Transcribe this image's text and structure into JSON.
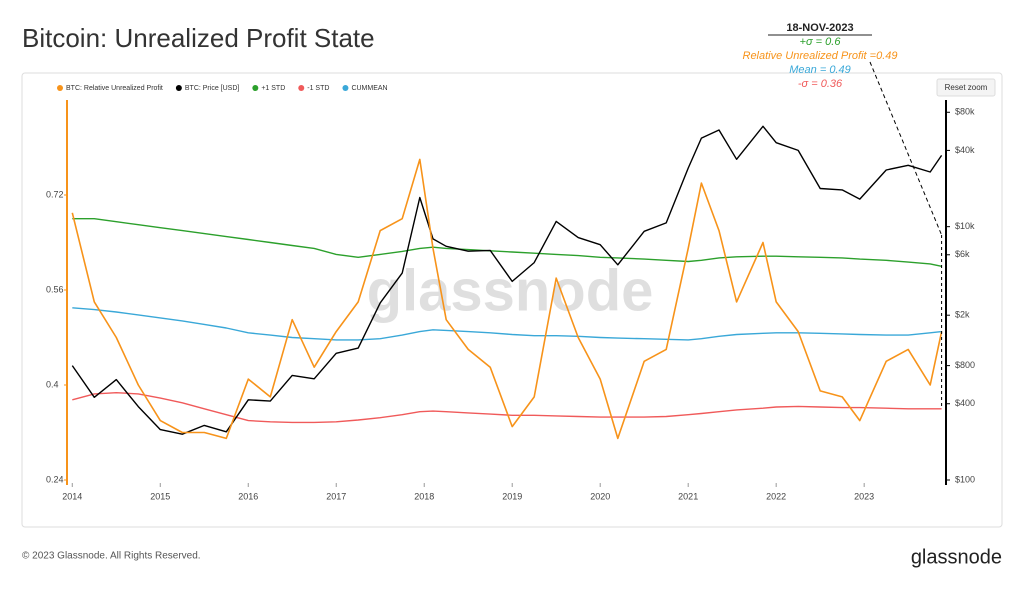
{
  "page_title": "Bitcoin: Unrealized Profit State",
  "footer": "© 2023 Glassnode. All Rights Reserved.",
  "brand": "glassnode",
  "watermark": "glassnode",
  "reset_zoom": "Reset zoom",
  "chart_data": {
    "type": "line",
    "annotation": {
      "date": "18-NOV-2023",
      "plus_sigma": "+σ = 0.6",
      "rup": "Relative Unrealized Profit =0.49",
      "mean": "Mean = 0.49",
      "minus_sigma": "-σ = 0.36"
    },
    "x": [
      2014,
      2014.25,
      2014.5,
      2014.75,
      2015,
      2015.25,
      2015.5,
      2015.75,
      2016,
      2016.25,
      2016.5,
      2016.75,
      2017,
      2017.25,
      2017.5,
      2017.75,
      2017.95,
      2018.1,
      2018.25,
      2018.5,
      2018.75,
      2019,
      2019.25,
      2019.5,
      2019.75,
      2020,
      2020.2,
      2020.5,
      2020.75,
      2021,
      2021.15,
      2021.35,
      2021.55,
      2021.85,
      2022,
      2022.25,
      2022.5,
      2022.75,
      2022.95,
      2023.25,
      2023.5,
      2023.75,
      2023.88
    ],
    "xlim": [
      2013.94,
      2023.93
    ],
    "xticks": [
      2014,
      2015,
      2016,
      2017,
      2018,
      2019,
      2020,
      2021,
      2022,
      2023
    ],
    "ylim": [
      0.24,
      0.88
    ],
    "yticks": [
      0.24,
      0.4,
      0.56,
      0.72
    ],
    "y2lim": [
      100,
      100000
    ],
    "y2_log": true,
    "y2ticks": [
      {
        "value": 100,
        "label": "$100"
      },
      {
        "value": 400,
        "label": "$400"
      },
      {
        "value": 800,
        "label": "$800"
      },
      {
        "value": 2000,
        "label": "$2k"
      },
      {
        "value": 6000,
        "label": "$6k"
      },
      {
        "value": 10000,
        "label": "$10k"
      },
      {
        "value": 40000,
        "label": "$40k"
      },
      {
        "value": 80000,
        "label": "$80k"
      }
    ],
    "series": [
      {
        "name": "BTC: Relative Unrealized Profit",
        "color": "#f7931a",
        "values": [
          0.69,
          0.54,
          0.48,
          0.4,
          0.34,
          0.32,
          0.32,
          0.31,
          0.41,
          0.38,
          0.51,
          0.43,
          0.49,
          0.54,
          0.66,
          0.68,
          0.78,
          0.63,
          0.51,
          0.46,
          0.43,
          0.33,
          0.38,
          0.58,
          0.48,
          0.41,
          0.31,
          0.44,
          0.46,
          0.63,
          0.74,
          0.66,
          0.54,
          0.64,
          0.54,
          0.49,
          0.39,
          0.38,
          0.34,
          0.44,
          0.46,
          0.4,
          0.49
        ]
      },
      {
        "name": "BTC: Price [USD]",
        "color": "#000000",
        "axis": "y2",
        "values": [
          800,
          450,
          620,
          380,
          250,
          230,
          270,
          240,
          430,
          420,
          670,
          630,
          1000,
          1100,
          2500,
          4300,
          17000,
          8000,
          7000,
          6400,
          6500,
          3700,
          5200,
          11000,
          8200,
          7200,
          5000,
          9200,
          10700,
          29000,
          50000,
          58000,
          34000,
          62000,
          46000,
          40000,
          20000,
          19500,
          16500,
          28000,
          30500,
          27000,
          36500
        ]
      },
      {
        "name": "+1 STD",
        "color": "#2ca02c",
        "values": [
          0.68,
          0.68,
          0.675,
          0.67,
          0.665,
          0.66,
          0.655,
          0.65,
          0.645,
          0.64,
          0.635,
          0.63,
          0.62,
          0.615,
          0.62,
          0.625,
          0.63,
          0.632,
          0.63,
          0.628,
          0.626,
          0.624,
          0.622,
          0.62,
          0.618,
          0.615,
          0.614,
          0.612,
          0.61,
          0.608,
          0.61,
          0.614,
          0.616,
          0.617,
          0.617,
          0.616,
          0.615,
          0.614,
          0.612,
          0.61,
          0.607,
          0.604,
          0.6
        ]
      },
      {
        "name": "-1 STD",
        "color": "#f05a5a",
        "values": [
          0.375,
          0.385,
          0.387,
          0.385,
          0.378,
          0.37,
          0.36,
          0.35,
          0.34,
          0.338,
          0.337,
          0.337,
          0.338,
          0.341,
          0.345,
          0.35,
          0.355,
          0.356,
          0.355,
          0.353,
          0.351,
          0.349,
          0.349,
          0.348,
          0.347,
          0.346,
          0.346,
          0.346,
          0.347,
          0.35,
          0.352,
          0.355,
          0.358,
          0.361,
          0.363,
          0.364,
          0.363,
          0.362,
          0.362,
          0.361,
          0.36,
          0.36,
          0.36
        ]
      },
      {
        "name": "CUMMEAN",
        "color": "#3aa8d8",
        "values": [
          0.53,
          0.527,
          0.523,
          0.518,
          0.513,
          0.508,
          0.502,
          0.496,
          0.488,
          0.484,
          0.48,
          0.478,
          0.476,
          0.476,
          0.478,
          0.484,
          0.49,
          0.493,
          0.492,
          0.49,
          0.488,
          0.485,
          0.483,
          0.483,
          0.482,
          0.48,
          0.479,
          0.478,
          0.477,
          0.476,
          0.478,
          0.482,
          0.485,
          0.487,
          0.488,
          0.488,
          0.487,
          0.486,
          0.485,
          0.484,
          0.484,
          0.488,
          0.49
        ]
      }
    ]
  }
}
